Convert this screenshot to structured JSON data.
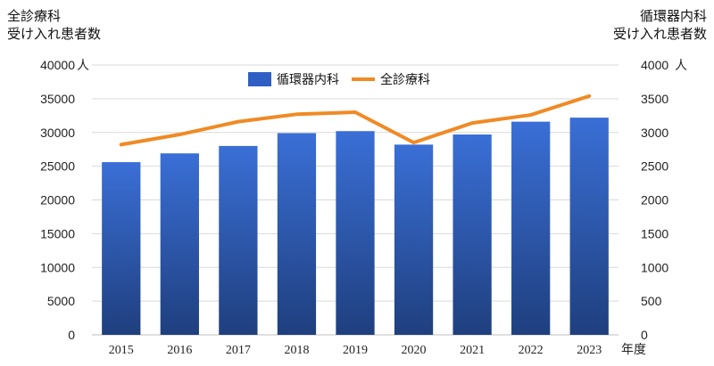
{
  "chart_data": {
    "type": "bar",
    "categories": [
      "2015",
      "2016",
      "2017",
      "2018",
      "2019",
      "2020",
      "2021",
      "2022",
      "2023"
    ],
    "series": [
      {
        "name": "循環器内科",
        "chart_type": "bar",
        "axis": "right",
        "color": "#2f5fc4",
        "values": [
          2560,
          2690,
          2800,
          2990,
          3020,
          2820,
          2970,
          3160,
          3220
        ]
      },
      {
        "name": "全診療科",
        "chart_type": "line",
        "axis": "left",
        "color": "#f08a24",
        "values": [
          28200,
          29700,
          31600,
          32700,
          33000,
          28500,
          31400,
          32600,
          35400
        ]
      }
    ],
    "left_axis": {
      "title": [
        "全診療科",
        "受け入れ患者数"
      ],
      "ylim": [
        0,
        40000
      ],
      "ticks": [
        "0",
        "5000",
        "10000",
        "15000",
        "20000",
        "25000",
        "30000",
        "35000",
        "40000"
      ],
      "unit": "人"
    },
    "right_axis": {
      "title": [
        "循環器内科",
        "受け入れ患者数"
      ],
      "ylim": [
        0,
        4000
      ],
      "ticks": [
        "0",
        "500",
        "1000",
        "1500",
        "2000",
        "2500",
        "3000",
        "3500",
        "4000"
      ],
      "unit": "人"
    },
    "xlabel": "年度",
    "grid": true,
    "legend_position": "top-center"
  }
}
